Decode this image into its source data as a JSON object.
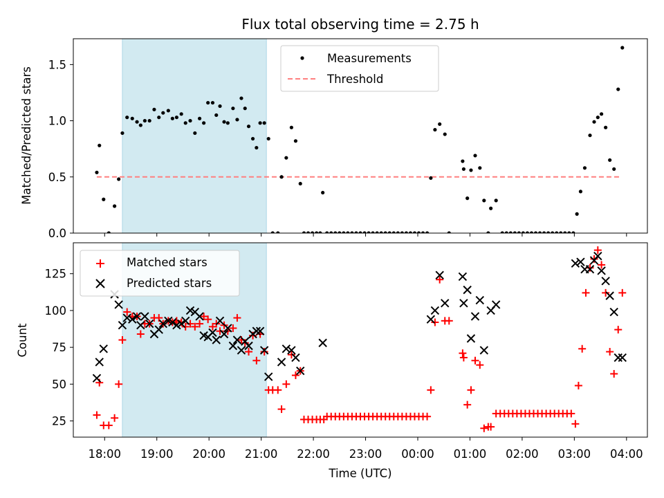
{
  "chart_data": {
    "type": "scatter",
    "title": "Flux total observing time = 2.75 h",
    "xlabel": "Time (UTC)",
    "xticks": [
      "18:00",
      "19:00",
      "20:00",
      "21:00",
      "22:00",
      "23:00",
      "00:00",
      "01:00",
      "02:00",
      "03:00",
      "04:00"
    ],
    "x_unit": "hours since 18:00 UTC",
    "xlim": [
      -0.6,
      10.4
    ],
    "shaded_region": [
      0.34,
      3.1
    ],
    "colors": {
      "measurement": "#000000",
      "threshold": "#ff7f7f",
      "matched": "#ff0000",
      "predicted": "#000000",
      "shade": "#add8e6"
    },
    "top": {
      "ylabel": "Matched/Predicted stars",
      "ylim": [
        0,
        1.73
      ],
      "yticks": [
        "0.0",
        "0.5",
        "1.0",
        "1.5"
      ],
      "legend": {
        "position": "upper-center",
        "entries": [
          "Measurements",
          "Threshold"
        ]
      },
      "threshold": {
        "y": 0.5,
        "x_range": [
          -0.15,
          9.9
        ]
      },
      "measurements": [
        [
          -0.15,
          0.54
        ],
        [
          -0.1,
          0.78
        ],
        [
          -0.02,
          0.3
        ],
        [
          0.08,
          0.0
        ],
        [
          0.19,
          0.24
        ],
        [
          0.27,
          0.48
        ],
        [
          0.34,
          0.89
        ],
        [
          0.43,
          1.03
        ],
        [
          0.53,
          1.02
        ],
        [
          0.62,
          0.99
        ],
        [
          0.69,
          0.96
        ],
        [
          0.77,
          1.0
        ],
        [
          0.86,
          1.0
        ],
        [
          0.95,
          1.1
        ],
        [
          1.04,
          1.03
        ],
        [
          1.12,
          1.07
        ],
        [
          1.22,
          1.09
        ],
        [
          1.3,
          1.02
        ],
        [
          1.38,
          1.03
        ],
        [
          1.47,
          1.06
        ],
        [
          1.55,
          0.98
        ],
        [
          1.64,
          1.0
        ],
        [
          1.73,
          0.89
        ],
        [
          1.82,
          1.02
        ],
        [
          1.9,
          0.98
        ],
        [
          1.98,
          1.16
        ],
        [
          2.07,
          1.16
        ],
        [
          2.14,
          1.05
        ],
        [
          2.21,
          1.13
        ],
        [
          2.29,
          0.99
        ],
        [
          2.36,
          0.98
        ],
        [
          2.46,
          1.11
        ],
        [
          2.54,
          1.01
        ],
        [
          2.62,
          1.2
        ],
        [
          2.69,
          1.11
        ],
        [
          2.76,
          0.95
        ],
        [
          2.84,
          0.84
        ],
        [
          2.91,
          0.76
        ],
        [
          2.98,
          0.98
        ],
        [
          3.06,
          0.98
        ],
        [
          3.14,
          0.84
        ],
        [
          3.22,
          0.0
        ],
        [
          3.32,
          0.0
        ],
        [
          3.39,
          0.5
        ],
        [
          3.48,
          0.67
        ],
        [
          3.58,
          0.94
        ],
        [
          3.66,
          0.82
        ],
        [
          3.75,
          0.44
        ],
        [
          3.82,
          0.0
        ],
        [
          3.9,
          0.0
        ],
        [
          3.98,
          0.0
        ],
        [
          4.06,
          0.0
        ],
        [
          4.13,
          0.0
        ],
        [
          4.18,
          0.36
        ],
        [
          4.26,
          0.0
        ],
        [
          4.34,
          0.0
        ],
        [
          4.42,
          0.0
        ],
        [
          4.5,
          0.0
        ],
        [
          4.58,
          0.0
        ],
        [
          4.66,
          0.0
        ],
        [
          4.74,
          0.0
        ],
        [
          4.82,
          0.0
        ],
        [
          4.9,
          0.0
        ],
        [
          4.98,
          0.0
        ],
        [
          5.06,
          0.0
        ],
        [
          5.14,
          0.0
        ],
        [
          5.22,
          0.0
        ],
        [
          5.3,
          0.0
        ],
        [
          5.38,
          0.0
        ],
        [
          5.46,
          0.0
        ],
        [
          5.54,
          0.0
        ],
        [
          5.62,
          0.0
        ],
        [
          5.7,
          0.0
        ],
        [
          5.78,
          0.0
        ],
        [
          5.86,
          0.0
        ],
        [
          5.94,
          0.0
        ],
        [
          6.02,
          0.0
        ],
        [
          6.1,
          0.0
        ],
        [
          6.18,
          0.0
        ],
        [
          6.25,
          0.49
        ],
        [
          6.33,
          0.92
        ],
        [
          6.42,
          0.97
        ],
        [
          6.52,
          0.88
        ],
        [
          6.6,
          0.0
        ],
        [
          6.86,
          0.64
        ],
        [
          6.88,
          0.57
        ],
        [
          6.95,
          0.31
        ],
        [
          7.02,
          0.56
        ],
        [
          7.1,
          0.69
        ],
        [
          7.19,
          0.58
        ],
        [
          7.27,
          0.29
        ],
        [
          7.35,
          0.0
        ],
        [
          7.4,
          0.22
        ],
        [
          7.5,
          0.29
        ],
        [
          7.62,
          0.0
        ],
        [
          7.7,
          0.0
        ],
        [
          7.78,
          0.0
        ],
        [
          7.86,
          0.0
        ],
        [
          7.94,
          0.0
        ],
        [
          8.02,
          0.0
        ],
        [
          8.1,
          0.0
        ],
        [
          8.18,
          0.0
        ],
        [
          8.26,
          0.0
        ],
        [
          8.34,
          0.0
        ],
        [
          8.42,
          0.0
        ],
        [
          8.5,
          0.0
        ],
        [
          8.58,
          0.0
        ],
        [
          8.66,
          0.0
        ],
        [
          8.74,
          0.0
        ],
        [
          8.82,
          0.0
        ],
        [
          8.9,
          0.0
        ],
        [
          8.98,
          0.0
        ],
        [
          9.05,
          0.17
        ],
        [
          9.12,
          0.37
        ],
        [
          9.2,
          0.58
        ],
        [
          9.3,
          0.87
        ],
        [
          9.38,
          0.99
        ],
        [
          9.45,
          1.03
        ],
        [
          9.52,
          1.06
        ],
        [
          9.6,
          0.94
        ],
        [
          9.68,
          0.65
        ],
        [
          9.76,
          0.57
        ],
        [
          9.84,
          1.28
        ],
        [
          9.92,
          1.65
        ]
      ]
    },
    "bottom": {
      "ylabel": "Count",
      "ylim": [
        14,
        146
      ],
      "yticks": [
        "25",
        "50",
        "75",
        "100",
        "125"
      ],
      "legend": {
        "position": "upper-left",
        "entries": [
          "Matched stars",
          "Predicted stars"
        ]
      },
      "matched": [
        [
          -0.15,
          29
        ],
        [
          -0.1,
          51
        ],
        [
          -0.02,
          22
        ],
        [
          0.08,
          22
        ],
        [
          0.19,
          27
        ],
        [
          0.27,
          50
        ],
        [
          0.34,
          80
        ],
        [
          0.43,
          99
        ],
        [
          0.53,
          96
        ],
        [
          0.62,
          96
        ],
        [
          0.69,
          84
        ],
        [
          0.77,
          91
        ],
        [
          0.86,
          91
        ],
        [
          0.95,
          95
        ],
        [
          1.04,
          95
        ],
        [
          1.12,
          91
        ],
        [
          1.22,
          93
        ],
        [
          1.3,
          92
        ],
        [
          1.38,
          93
        ],
        [
          1.47,
          92
        ],
        [
          1.55,
          89
        ],
        [
          1.64,
          91
        ],
        [
          1.73,
          89
        ],
        [
          1.82,
          91
        ],
        [
          1.9,
          96
        ],
        [
          1.98,
          94
        ],
        [
          2.07,
          89
        ],
        [
          2.14,
          91
        ],
        [
          2.21,
          86
        ],
        [
          2.29,
          90
        ],
        [
          2.36,
          86
        ],
        [
          2.46,
          88
        ],
        [
          2.54,
          95
        ],
        [
          2.62,
          80
        ],
        [
          2.69,
          78
        ],
        [
          2.76,
          72
        ],
        [
          2.84,
          83
        ],
        [
          2.91,
          66
        ],
        [
          2.98,
          84
        ],
        [
          3.06,
          72
        ],
        [
          3.14,
          46
        ],
        [
          3.22,
          46
        ],
        [
          3.32,
          46
        ],
        [
          3.39,
          33
        ],
        [
          3.48,
          50
        ],
        [
          3.58,
          70
        ],
        [
          3.66,
          56
        ],
        [
          3.75,
          59
        ],
        [
          3.82,
          26
        ],
        [
          3.9,
          26
        ],
        [
          3.98,
          26
        ],
        [
          4.06,
          26
        ],
        [
          4.13,
          26
        ],
        [
          4.2,
          26
        ],
        [
          4.26,
          28
        ],
        [
          4.34,
          28
        ],
        [
          4.42,
          28
        ],
        [
          4.5,
          28
        ],
        [
          4.58,
          28
        ],
        [
          4.66,
          28
        ],
        [
          4.74,
          28
        ],
        [
          4.82,
          28
        ],
        [
          4.9,
          28
        ],
        [
          4.98,
          28
        ],
        [
          5.06,
          28
        ],
        [
          5.14,
          28
        ],
        [
          5.22,
          28
        ],
        [
          5.3,
          28
        ],
        [
          5.38,
          28
        ],
        [
          5.46,
          28
        ],
        [
          5.54,
          28
        ],
        [
          5.62,
          28
        ],
        [
          5.7,
          28
        ],
        [
          5.78,
          28
        ],
        [
          5.86,
          28
        ],
        [
          5.94,
          28
        ],
        [
          6.02,
          28
        ],
        [
          6.1,
          28
        ],
        [
          6.18,
          28
        ],
        [
          6.25,
          46
        ],
        [
          6.33,
          92
        ],
        [
          6.42,
          121
        ],
        [
          6.52,
          93
        ],
        [
          6.6,
          93
        ],
        [
          6.86,
          71
        ],
        [
          6.88,
          68
        ],
        [
          6.95,
          36
        ],
        [
          7.02,
          46
        ],
        [
          7.1,
          66
        ],
        [
          7.19,
          63
        ],
        [
          7.27,
          20
        ],
        [
          7.35,
          21
        ],
        [
          7.4,
          21
        ],
        [
          7.5,
          30
        ],
        [
          7.58,
          30
        ],
        [
          7.66,
          30
        ],
        [
          7.74,
          30
        ],
        [
          7.82,
          30
        ],
        [
          7.9,
          30
        ],
        [
          7.98,
          30
        ],
        [
          8.06,
          30
        ],
        [
          8.14,
          30
        ],
        [
          8.22,
          30
        ],
        [
          8.3,
          30
        ],
        [
          8.38,
          30
        ],
        [
          8.46,
          30
        ],
        [
          8.54,
          30
        ],
        [
          8.62,
          30
        ],
        [
          8.7,
          30
        ],
        [
          8.78,
          30
        ],
        [
          8.86,
          30
        ],
        [
          8.94,
          30
        ],
        [
          9.02,
          23
        ],
        [
          9.08,
          49
        ],
        [
          9.15,
          74
        ],
        [
          9.22,
          112
        ],
        [
          9.3,
          129
        ],
        [
          9.38,
          135
        ],
        [
          9.45,
          141
        ],
        [
          9.52,
          131
        ],
        [
          9.6,
          112
        ],
        [
          9.68,
          72
        ],
        [
          9.76,
          57
        ],
        [
          9.84,
          87
        ],
        [
          9.92,
          112
        ]
      ],
      "predicted": [
        [
          -0.15,
          54
        ],
        [
          -0.1,
          65
        ],
        [
          -0.02,
          74
        ],
        [
          0.19,
          111
        ],
        [
          0.27,
          104
        ],
        [
          0.34,
          90
        ],
        [
          0.43,
          95
        ],
        [
          0.53,
          94
        ],
        [
          0.62,
          96
        ],
        [
          0.69,
          90
        ],
        [
          0.77,
          96
        ],
        [
          0.86,
          91
        ],
        [
          0.95,
          84
        ],
        [
          1.04,
          87
        ],
        [
          1.12,
          91
        ],
        [
          1.22,
          93
        ],
        [
          1.3,
          92
        ],
        [
          1.38,
          90
        ],
        [
          1.47,
          91
        ],
        [
          1.55,
          93
        ],
        [
          1.64,
          100
        ],
        [
          1.73,
          99
        ],
        [
          1.82,
          96
        ],
        [
          1.9,
          83
        ],
        [
          1.98,
          82
        ],
        [
          2.07,
          85
        ],
        [
          2.14,
          80
        ],
        [
          2.21,
          93
        ],
        [
          2.29,
          84
        ],
        [
          2.36,
          88
        ],
        [
          2.46,
          76
        ],
        [
          2.54,
          80
        ],
        [
          2.62,
          73
        ],
        [
          2.69,
          79
        ],
        [
          2.76,
          76
        ],
        [
          2.84,
          84
        ],
        [
          2.91,
          86
        ],
        [
          2.98,
          86
        ],
        [
          3.06,
          73
        ],
        [
          3.14,
          55
        ],
        [
          3.39,
          65
        ],
        [
          3.48,
          74
        ],
        [
          3.58,
          73
        ],
        [
          3.66,
          68
        ],
        [
          3.75,
          59
        ],
        [
          4.18,
          78
        ],
        [
          6.25,
          94
        ],
        [
          6.33,
          100
        ],
        [
          6.42,
          124
        ],
        [
          6.52,
          105
        ],
        [
          6.86,
          123
        ],
        [
          6.88,
          105
        ],
        [
          6.95,
          114
        ],
        [
          7.02,
          81
        ],
        [
          7.1,
          96
        ],
        [
          7.19,
          107
        ],
        [
          7.27,
          73
        ],
        [
          7.4,
          100
        ],
        [
          7.5,
          104
        ],
        [
          9.02,
          132
        ],
        [
          9.12,
          133
        ],
        [
          9.2,
          128
        ],
        [
          9.3,
          128
        ],
        [
          9.38,
          134
        ],
        [
          9.45,
          137
        ],
        [
          9.52,
          127
        ],
        [
          9.6,
          120
        ],
        [
          9.68,
          110
        ],
        [
          9.76,
          99
        ],
        [
          9.84,
          68
        ],
        [
          9.92,
          68
        ]
      ]
    }
  }
}
